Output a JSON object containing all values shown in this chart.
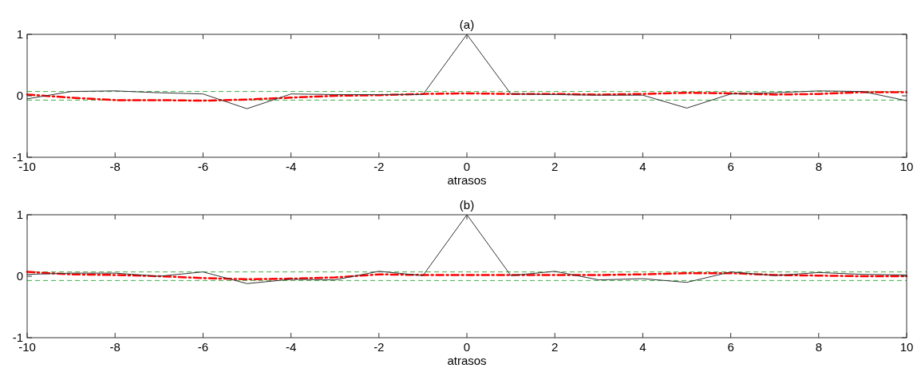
{
  "chart_data": [
    {
      "type": "line",
      "title": "(a)",
      "xlabel": "atrasos",
      "x": [
        -10,
        -9,
        -8,
        -7,
        -6,
        -5,
        -4,
        -3,
        -2,
        -1,
        0,
        1,
        2,
        3,
        4,
        5,
        6,
        7,
        8,
        9,
        10
      ],
      "xlim": [
        -10,
        10
      ],
      "xticks": [
        -10,
        -8,
        -6,
        -4,
        -2,
        0,
        2,
        4,
        6,
        8,
        10
      ],
      "ylim": [
        -1,
        1
      ],
      "yticks": [
        -1,
        0,
        1
      ],
      "grid": false,
      "series": [
        {
          "color": "#ff0000",
          "line_style": "dashdot",
          "values": [
            0.02,
            -0.03,
            -0.07,
            -0.07,
            -0.08,
            -0.06,
            -0.03,
            0.0,
            0.01,
            0.03,
            0.04,
            0.03,
            0.03,
            0.02,
            0.03,
            0.05,
            0.04,
            0.02,
            0.03,
            0.06,
            0.06
          ]
        },
        {
          "color": "#333333",
          "line_style": "solid",
          "values": [
            -0.05,
            0.07,
            0.08,
            0.05,
            0.03,
            -0.21,
            0.03,
            0.02,
            0.02,
            0.02,
            1,
            0.03,
            0.02,
            0.01,
            0.01,
            -0.2,
            0.03,
            0.05,
            0.08,
            0.07,
            -0.08
          ]
        }
      ],
      "ref_lines": [
        {
          "axis": "y",
          "value": 0.07,
          "color": "#3cb043",
          "line_style": "dashed"
        },
        {
          "axis": "y",
          "value": -0.07,
          "color": "#3cb043",
          "line_style": "dashed"
        }
      ]
    },
    {
      "type": "line",
      "title": "(b)",
      "xlabel": "atrasos",
      "x": [
        -10,
        -9,
        -8,
        -7,
        -6,
        -5,
        -4,
        -3,
        -2,
        -1,
        0,
        1,
        2,
        3,
        4,
        5,
        6,
        7,
        8,
        9,
        10
      ],
      "xlim": [
        -10,
        10
      ],
      "xticks": [
        -10,
        -8,
        -6,
        -4,
        -2,
        0,
        2,
        4,
        6,
        8,
        10
      ],
      "ylim": [
        -1,
        1
      ],
      "yticks": [
        -1,
        0,
        1
      ],
      "grid": false,
      "series": [
        {
          "color": "#ff0000",
          "line_style": "dashdot",
          "values": [
            0.07,
            0.03,
            0.02,
            0.0,
            -0.03,
            -0.05,
            -0.04,
            -0.02,
            0.03,
            0.02,
            0.02,
            0.02,
            0.02,
            0.02,
            0.03,
            0.05,
            0.05,
            0.02,
            0.01,
            0.0,
            0.0
          ]
        },
        {
          "color": "#333333",
          "line_style": "solid",
          "values": [
            0.03,
            0.05,
            0.05,
            0.0,
            0.07,
            -0.12,
            -0.05,
            -0.06,
            0.08,
            0.01,
            1,
            0.01,
            0.08,
            -0.06,
            -0.04,
            -0.1,
            0.07,
            0.01,
            0.06,
            0.03,
            0.02
          ]
        }
      ],
      "ref_lines": [
        {
          "axis": "y",
          "value": 0.07,
          "color": "#3cb043",
          "line_style": "dashed"
        },
        {
          "axis": "y",
          "value": -0.07,
          "color": "#3cb043",
          "line_style": "dashed"
        }
      ]
    }
  ]
}
